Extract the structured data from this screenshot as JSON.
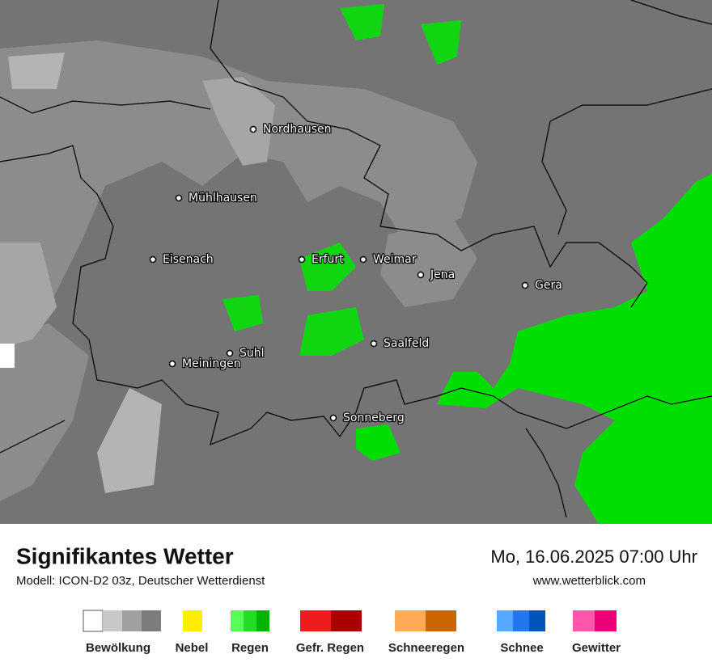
{
  "map": {
    "cities": [
      "Nordhausen",
      "Mühlhausen",
      "Eisenach",
      "Erfurt",
      "Weimar",
      "Jena",
      "Gera",
      "Saalfeld",
      "Suhl",
      "Meiningen",
      "Sonneberg"
    ]
  },
  "footer": {
    "title": "Signifikantes Wetter",
    "model": "Modell: ICON-D2 03z, Deutscher Wetterdienst",
    "datetime": "Mo, 16.06.2025 07:00 Uhr",
    "website": "www.wetterblick.com"
  },
  "legend": [
    "Bewölkung",
    "Nebel",
    "Regen",
    "Gefr. Regen",
    "Schneeregen",
    "Schnee",
    "Gewitter"
  ]
}
